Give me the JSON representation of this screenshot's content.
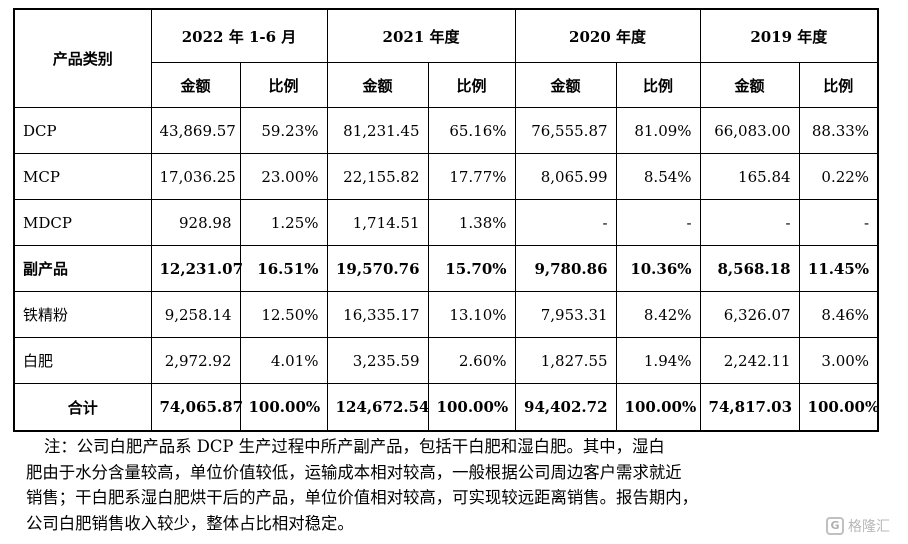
{
  "table": {
    "header_category": "产品类别",
    "periods": [
      "2022 年 1-6 月",
      "2021 年度",
      "2020 年度",
      "2019 年度"
    ],
    "sub_amount": "金额",
    "sub_ratio": "比例",
    "rows": [
      {
        "name": "DCP",
        "values": [
          "43,869.57",
          "59.23%",
          "81,231.45",
          "65.16%",
          "76,555.87",
          "81.09%",
          "66,083.00",
          "88.33%"
        ],
        "bold": false
      },
      {
        "name": "MCP",
        "values": [
          "17,036.25",
          "23.00%",
          "22,155.82",
          "17.77%",
          "8,065.99",
          "8.54%",
          "165.84",
          "0.22%"
        ],
        "bold": false
      },
      {
        "name": "MDCP",
        "values": [
          "928.98",
          "1.25%",
          "1,714.51",
          "1.38%",
          "-",
          "-",
          "-",
          "-"
        ],
        "bold": false
      },
      {
        "name": "副产品",
        "values": [
          "12,231.07",
          "16.51%",
          "19,570.76",
          "15.70%",
          "9,780.86",
          "10.36%",
          "8,568.18",
          "11.45%"
        ],
        "bold": true
      },
      {
        "name": "铁精粉",
        "values": [
          "9,258.14",
          "12.50%",
          "16,335.17",
          "13.10%",
          "7,953.31",
          "8.42%",
          "6,326.07",
          "8.46%"
        ],
        "bold": false
      },
      {
        "name": "白肥",
        "values": [
          "2,972.92",
          "4.01%",
          "3,235.59",
          "2.60%",
          "1,827.55",
          "1.94%",
          "2,242.11",
          "3.00%"
        ],
        "bold": false
      }
    ],
    "total": {
      "name": "合计",
      "values": [
        "74,065.87",
        "100.00%",
        "124,672.54",
        "100.00%",
        "94,402.72",
        "100.00%",
        "74,817.03",
        "100.00%"
      ]
    }
  },
  "note": {
    "lines": [
      "注：公司白肥产品系 DCP 生产过程中所产副产品，包括干白肥和湿白肥。其中，湿白",
      "肥由于水分含量较高，单位价值较低，运输成本相对较高，一般根据公司周边客户需求就近",
      "销售；干白肥系湿白肥烘干后的产品，单位价值相对较高，可实现较远距离销售。报告期内，",
      "公司白肥销售收入较少，整体占比相对稳定。"
    ]
  },
  "watermark": {
    "text": "格隆汇",
    "icon": "G"
  }
}
